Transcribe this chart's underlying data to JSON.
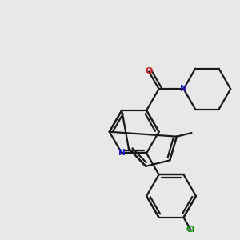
{
  "bg_color": "#e8e8e8",
  "bond_color": "#1a1a1a",
  "n_color": "#2020cc",
  "o_color": "#cc2020",
  "cl_color": "#008800",
  "lw": 1.6,
  "dbo": 0.12,
  "xlim": [
    0,
    10
  ],
  "ylim": [
    0,
    10
  ]
}
